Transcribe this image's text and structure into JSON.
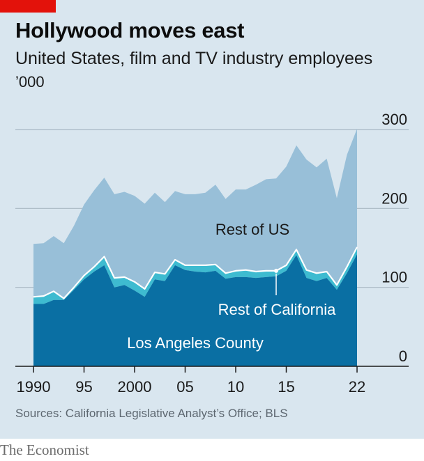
{
  "header": {
    "title": "Hollywood moves east",
    "subtitle": "United States, film and TV industry employees",
    "unit": "’000"
  },
  "footer": {
    "source": "Sources: California Legislative Analyst’s Office; BLS",
    "brand": "The Economist"
  },
  "colors": {
    "background": "#d9e6ef",
    "rest_of_us": "#98bfd8",
    "rest_of_california": "#3ebbd0",
    "los_angeles_county": "#0a6fa3",
    "divider_line": "#ffffff",
    "accent_tag": "#e3120b"
  },
  "chart_data": {
    "type": "area",
    "stacked": true,
    "x": [
      1990,
      1991,
      1992,
      1993,
      1994,
      1995,
      1996,
      1997,
      1998,
      1999,
      2000,
      2001,
      2002,
      2003,
      2004,
      2005,
      2006,
      2007,
      2008,
      2009,
      2010,
      2011,
      2012,
      2013,
      2014,
      2015,
      2016,
      2017,
      2018,
      2019,
      2020,
      2021,
      2022
    ],
    "x_ticks": [
      1990,
      1995,
      2000,
      2005,
      2010,
      2015,
      2022
    ],
    "x_tick_labels": [
      "1990",
      "95",
      "2000",
      "05",
      "10",
      "15",
      "22"
    ],
    "ylim": [
      0,
      300
    ],
    "y_ticks": [
      0,
      100,
      200,
      300
    ],
    "y_tick_labels": [
      "0",
      "100",
      "200",
      "300"
    ],
    "grid": true,
    "series": [
      {
        "name": "Los Angeles County",
        "values": [
          79,
          79,
          84,
          84,
          97,
          110,
          120,
          128,
          100,
          103,
          96,
          88,
          110,
          108,
          128,
          122,
          120,
          119,
          121,
          111,
          113,
          113,
          112,
          113,
          114,
          121,
          141,
          112,
          108,
          112,
          97,
          118,
          142
        ]
      },
      {
        "name": "Rest of California",
        "values": [
          9,
          10,
          11,
          2,
          3,
          5,
          6,
          11,
          12,
          10,
          11,
          10,
          9,
          9,
          7,
          6,
          8,
          9,
          8,
          7,
          8,
          9,
          8,
          8,
          7,
          7,
          7,
          10,
          10,
          8,
          6,
          8,
          9
        ]
      },
      {
        "name": "Rest of US",
        "values": [
          67,
          67,
          70,
          70,
          78,
          90,
          97,
          100,
          106,
          108,
          109,
          108,
          101,
          91,
          87,
          90,
          90,
          92,
          101,
          94,
          103,
          102,
          110,
          116,
          117,
          125,
          132,
          140,
          134,
          143,
          110,
          142,
          150
        ]
      }
    ]
  }
}
